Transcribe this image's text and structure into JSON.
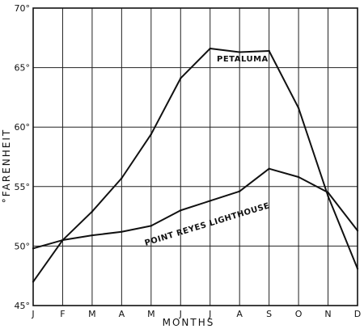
{
  "chart_data": {
    "type": "line",
    "xlabel": "MONTHS",
    "ylabel": "°FARENHEIT",
    "categories": [
      "J",
      "F",
      "M",
      "A",
      "M",
      "J",
      "J",
      "A",
      "S",
      "O",
      "N",
      "D"
    ],
    "ylim": [
      45,
      70
    ],
    "yticks": [
      45,
      50,
      55,
      60,
      65,
      70
    ],
    "ytick_labels": [
      "45°",
      "50°",
      "55°",
      "60°",
      "65°",
      "70°"
    ],
    "grid": true,
    "series": [
      {
        "name": "PETALUMA",
        "values": [
          47.0,
          50.5,
          52.9,
          55.7,
          59.4,
          64.1,
          66.6,
          66.3,
          66.4,
          61.6,
          54.2,
          48.1
        ]
      },
      {
        "name": "POINT REYES LIGHTHOUSE",
        "values": [
          49.8,
          50.5,
          50.9,
          51.2,
          51.7,
          53.0,
          53.8,
          54.6,
          56.5,
          55.8,
          54.5,
          51.3
        ]
      }
    ]
  }
}
